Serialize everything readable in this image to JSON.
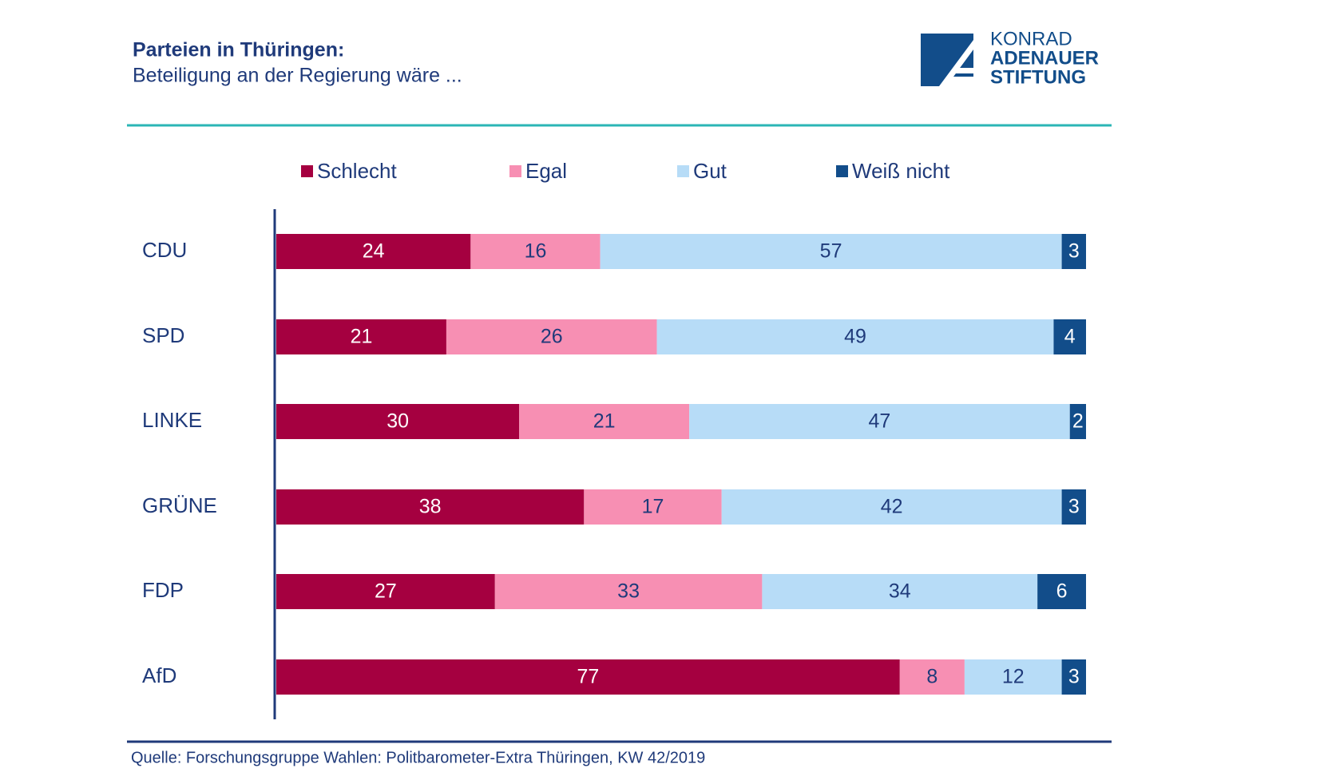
{
  "logo": [
    "KONRAD",
    "ADENAUER",
    "STIFTUNG"
  ],
  "chart_data": {
    "type": "stacked-bar-horizontal",
    "title": "Parteien in Thüringen:",
    "subtitle": "Beteiligung an der Regierung wäre ...",
    "source": "Quelle: Forschungsgruppe Wahlen: Politbarometer-Extra Thüringen, KW 42/2019",
    "categories": [
      "CDU",
      "SPD",
      "LINKE",
      "GRÜNE",
      "FDP",
      "AfD"
    ],
    "series": [
      {
        "name": "Schlecht",
        "color": "#a50040",
        "label_color": "#ffffff",
        "values": [
          24,
          21,
          30,
          38,
          27,
          77
        ]
      },
      {
        "name": "Egal",
        "color": "#f78fb3",
        "label_color": "#1f3a7a",
        "values": [
          16,
          26,
          21,
          17,
          33,
          8
        ]
      },
      {
        "name": "Gut",
        "color": "#b7dcf7",
        "label_color": "#1f3a7a",
        "values": [
          57,
          49,
          47,
          42,
          34,
          12
        ]
      },
      {
        "name": "Weiß nicht",
        "color": "#124d8a",
        "label_color": "#ffffff",
        "values": [
          3,
          4,
          2,
          3,
          6,
          3
        ]
      }
    ]
  }
}
